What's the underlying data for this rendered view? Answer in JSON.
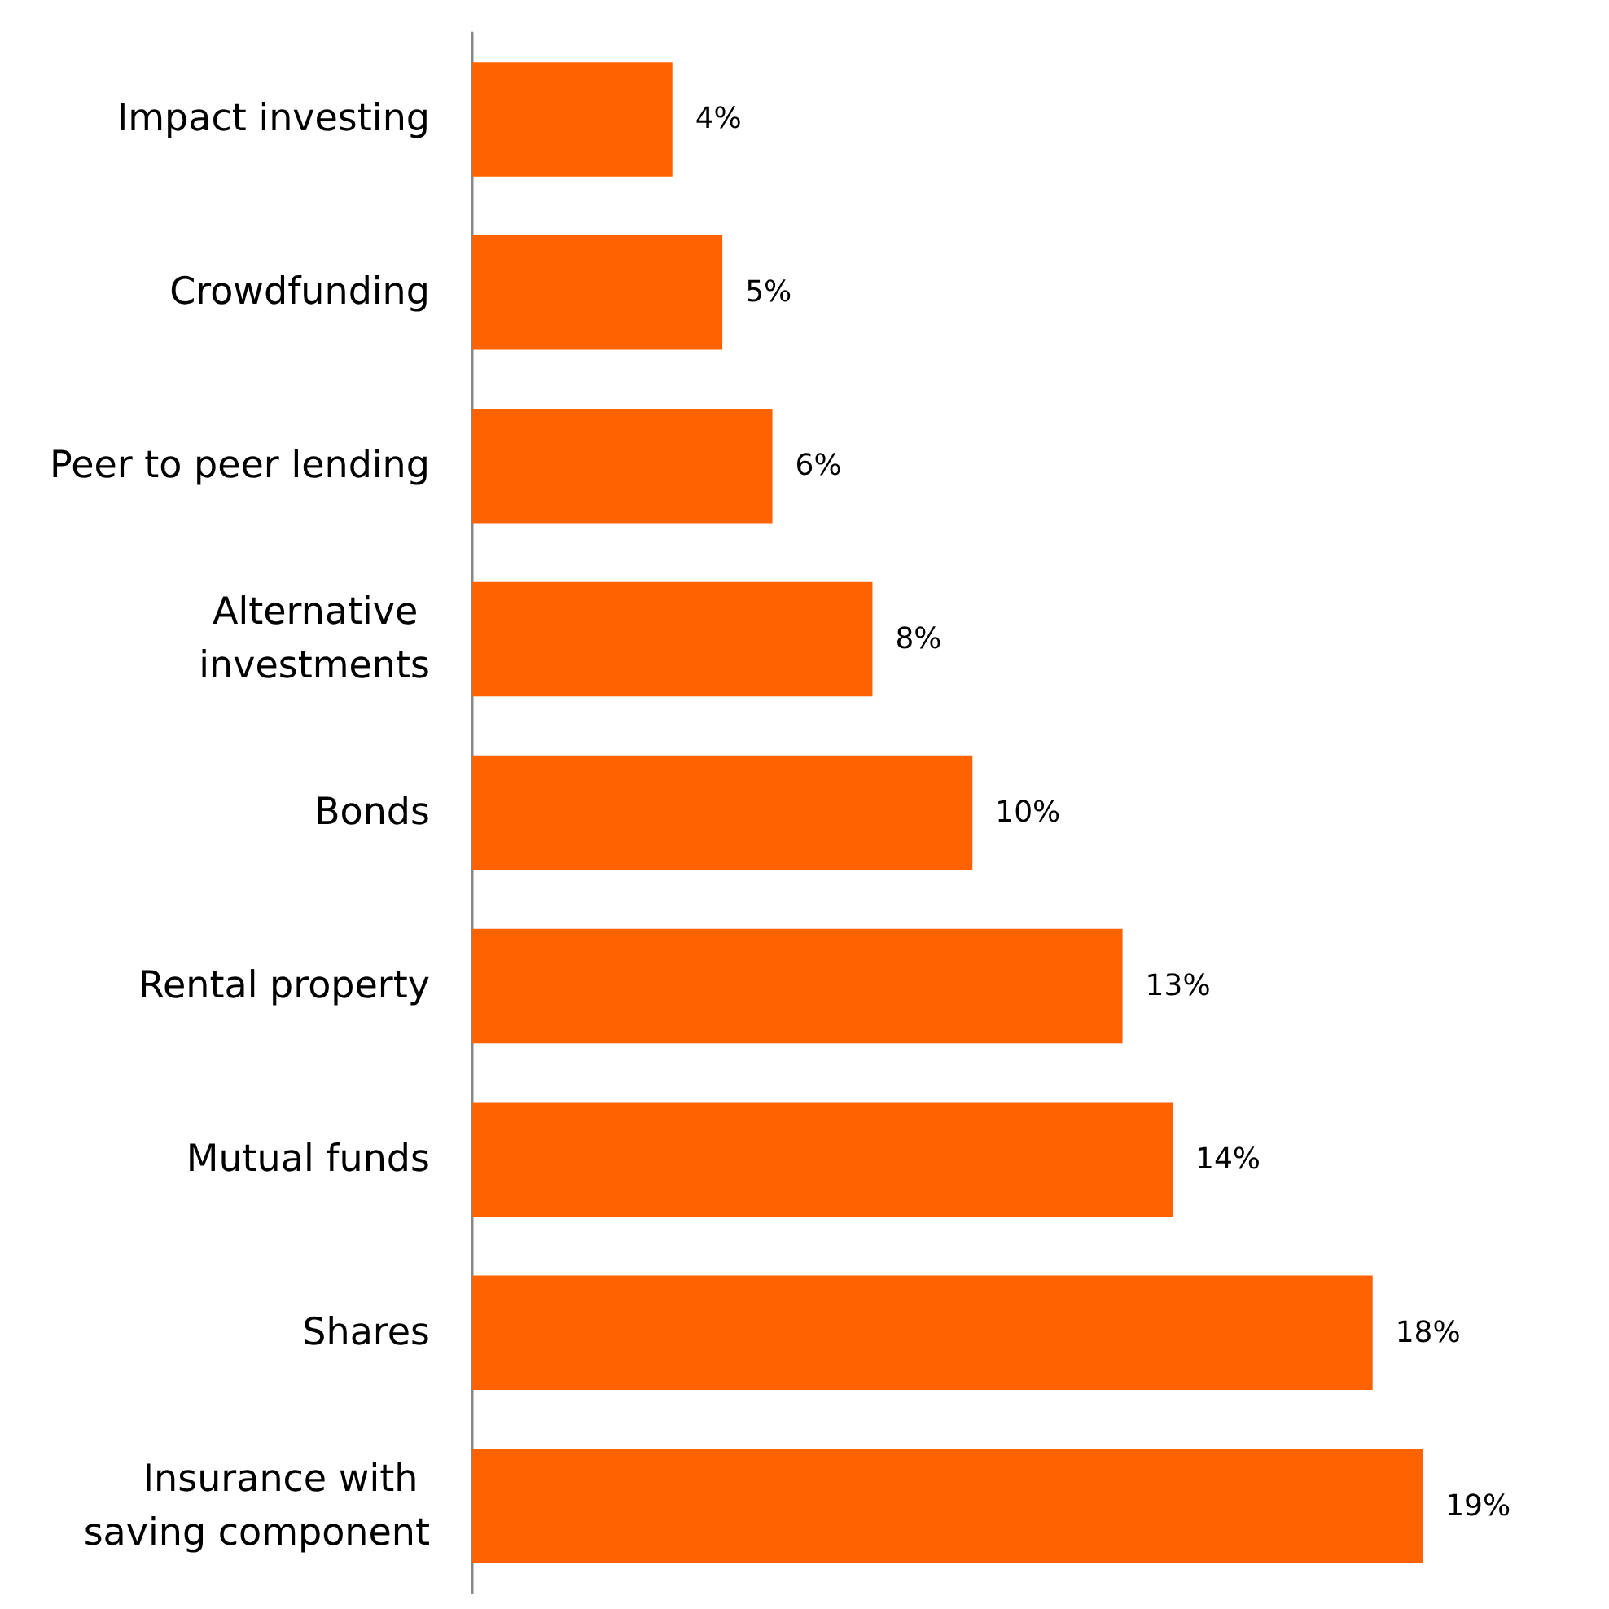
{
  "chart_data": {
    "type": "bar",
    "orientation": "horizontal",
    "categories": [
      "Impact investing",
      "Crowdfunding",
      "Peer to peer lending",
      "Alternative investments",
      "Bonds",
      "Rental property",
      "Mutual funds",
      "Shares",
      "Insurance with saving component"
    ],
    "series": [
      {
        "color": "#ff6200",
        "values": [
          4,
          5,
          6,
          8,
          10,
          13,
          14,
          18,
          19
        ],
        "value_labels": [
          "4%",
          "5%",
          "6%",
          "8%",
          "10%",
          "13%",
          "14%",
          "18%",
          "19%"
        ]
      }
    ]
  }
}
